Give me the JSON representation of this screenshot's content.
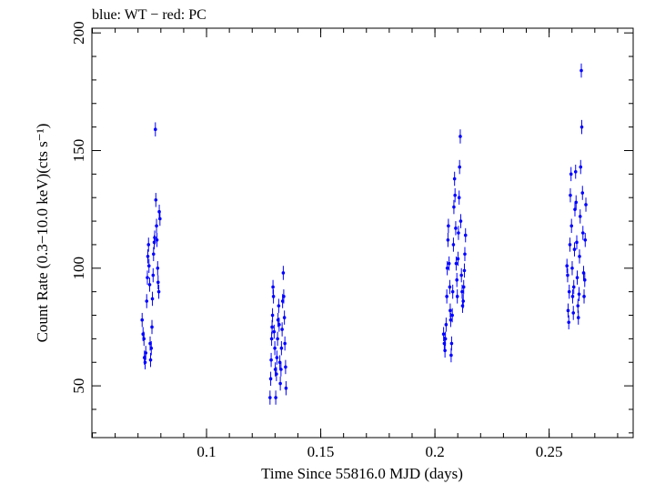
{
  "chart_data": {
    "type": "scatter",
    "title": "blue: WT − red: PC",
    "xlabel": "Time Since 55816.0 MJD (days)",
    "ylabel": "Count Rate (0.3−10.0 keV)(cts s⁻¹)",
    "xlim": [
      0.0498,
      0.2868
    ],
    "ylim": [
      28,
      202
    ],
    "x_ticks": [
      0.1,
      0.15,
      0.2,
      0.25
    ],
    "x_tick_labels": [
      "0.1",
      "0.15",
      "0.2",
      "0.25"
    ],
    "y_ticks": [
      50,
      100,
      150,
      200
    ],
    "y_tick_labels": [
      "50",
      "100",
      "150",
      "200"
    ],
    "grid": false,
    "colors": {
      "WT": "#0000ff",
      "PC": "#ff0000"
    },
    "series": [
      {
        "name": "WT",
        "color": "#0000ff",
        "error_y": 3,
        "points": [
          [
            0.0718,
            78
          ],
          [
            0.0722,
            72
          ],
          [
            0.0726,
            70
          ],
          [
            0.0728,
            62
          ],
          [
            0.0731,
            60
          ],
          [
            0.0734,
            64
          ],
          [
            0.0738,
            86
          ],
          [
            0.0741,
            96
          ],
          [
            0.0743,
            105
          ],
          [
            0.0746,
            110
          ],
          [
            0.0748,
            101
          ],
          [
            0.0751,
            93
          ],
          [
            0.0753,
            68
          ],
          [
            0.0755,
            61
          ],
          [
            0.0758,
            66
          ],
          [
            0.0761,
            75
          ],
          [
            0.0763,
            87
          ],
          [
            0.0766,
            97
          ],
          [
            0.0768,
            106
          ],
          [
            0.0771,
            111
          ],
          [
            0.0773,
            113
          ],
          [
            0.0776,
            159
          ],
          [
            0.0778,
            129
          ],
          [
            0.0781,
            118
          ],
          [
            0.0783,
            112
          ],
          [
            0.0786,
            100
          ],
          [
            0.0788,
            94
          ],
          [
            0.0791,
            90
          ],
          [
            0.0793,
            124
          ],
          [
            0.0796,
            121
          ],
          [
            0.1278,
            45
          ],
          [
            0.1281,
            53
          ],
          [
            0.1283,
            61
          ],
          [
            0.1285,
            70
          ],
          [
            0.1287,
            75
          ],
          [
            0.1289,
            80
          ],
          [
            0.1291,
            92
          ],
          [
            0.1293,
            88
          ],
          [
            0.1296,
            73
          ],
          [
            0.1299,
            66
          ],
          [
            0.1301,
            57
          ],
          [
            0.1303,
            45
          ],
          [
            0.1306,
            55
          ],
          [
            0.1308,
            62
          ],
          [
            0.1311,
            70
          ],
          [
            0.1313,
            78
          ],
          [
            0.1316,
            84
          ],
          [
            0.1318,
            76
          ],
          [
            0.1321,
            60
          ],
          [
            0.1323,
            51
          ],
          [
            0.1326,
            57
          ],
          [
            0.1328,
            66
          ],
          [
            0.1331,
            74
          ],
          [
            0.1333,
            86
          ],
          [
            0.1336,
            98
          ],
          [
            0.1338,
            88
          ],
          [
            0.1341,
            79
          ],
          [
            0.1343,
            68
          ],
          [
            0.1346,
            58
          ],
          [
            0.1348,
            49
          ],
          [
            0.2038,
            72
          ],
          [
            0.2041,
            68
          ],
          [
            0.2044,
            65
          ],
          [
            0.2046,
            70
          ],
          [
            0.2049,
            76
          ],
          [
            0.2052,
            88
          ],
          [
            0.2054,
            100
          ],
          [
            0.2057,
            112
          ],
          [
            0.2059,
            118
          ],
          [
            0.2062,
            102
          ],
          [
            0.2065,
            92
          ],
          [
            0.2067,
            82
          ],
          [
            0.2069,
            78
          ],
          [
            0.2071,
            63
          ],
          [
            0.2073,
            68
          ],
          [
            0.2076,
            80
          ],
          [
            0.2078,
            90
          ],
          [
            0.2081,
            110
          ],
          [
            0.2083,
            126
          ],
          [
            0.2086,
            138
          ],
          [
            0.2088,
            131
          ],
          [
            0.2091,
            117
          ],
          [
            0.2093,
            102
          ],
          [
            0.2096,
            95
          ],
          [
            0.2098,
            88
          ],
          [
            0.2101,
            104
          ],
          [
            0.2103,
            115
          ],
          [
            0.2106,
            130
          ],
          [
            0.2108,
            143
          ],
          [
            0.2111,
            156
          ],
          [
            0.2113,
            120
          ],
          [
            0.2116,
            97
          ],
          [
            0.2119,
            90
          ],
          [
            0.2121,
            84
          ],
          [
            0.2124,
            86
          ],
          [
            0.2126,
            92
          ],
          [
            0.2129,
            99
          ],
          [
            0.2131,
            106
          ],
          [
            0.2134,
            114
          ],
          [
            0.2578,
            101
          ],
          [
            0.2581,
            97
          ],
          [
            0.2583,
            82
          ],
          [
            0.2586,
            77
          ],
          [
            0.2588,
            90
          ],
          [
            0.2591,
            110
          ],
          [
            0.2593,
            131
          ],
          [
            0.2596,
            140
          ],
          [
            0.2598,
            118
          ],
          [
            0.2601,
            100
          ],
          [
            0.2603,
            88
          ],
          [
            0.2606,
            81
          ],
          [
            0.2608,
            92
          ],
          [
            0.2611,
            108
          ],
          [
            0.2613,
            125
          ],
          [
            0.2616,
            141
          ],
          [
            0.2618,
            128
          ],
          [
            0.2621,
            111
          ],
          [
            0.2623,
            96
          ],
          [
            0.2626,
            84
          ],
          [
            0.2628,
            79
          ],
          [
            0.2631,
            89
          ],
          [
            0.2633,
            105
          ],
          [
            0.2636,
            122
          ],
          [
            0.2638,
            143
          ],
          [
            0.2641,
            184
          ],
          [
            0.2643,
            160
          ],
          [
            0.2646,
            132
          ],
          [
            0.2648,
            115
          ],
          [
            0.2651,
            98
          ],
          [
            0.2653,
            88
          ],
          [
            0.2656,
            95
          ],
          [
            0.2658,
            112
          ],
          [
            0.2661,
            127
          ]
        ]
      }
    ]
  }
}
